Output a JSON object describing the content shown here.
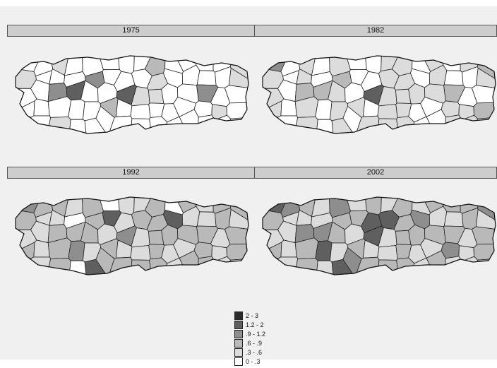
{
  "panels": [
    {
      "label": "1975",
      "regions": [
        0,
        0,
        1,
        0,
        0,
        0,
        0,
        0,
        2,
        0,
        0,
        0,
        0,
        1,
        1,
        0,
        0,
        0,
        3,
        0,
        0,
        0,
        1,
        0,
        0,
        0,
        0,
        1,
        0,
        0,
        3,
        4,
        0,
        0,
        4,
        1,
        1,
        0,
        0,
        3,
        0,
        0,
        0,
        0,
        0,
        0,
        0,
        2,
        0,
        0,
        0,
        0,
        0,
        0,
        1,
        0,
        0,
        0,
        1,
        0,
        0,
        0,
        0,
        0,
        0,
        0,
        0,
        0,
        0,
        0
      ]
    },
    {
      "label": "1982",
      "regions": [
        3,
        0,
        1,
        0,
        1,
        0,
        0,
        1,
        1,
        0,
        1,
        0,
        1,
        2,
        1,
        0,
        1,
        0,
        2,
        0,
        0,
        1,
        1,
        0,
        1,
        0,
        0,
        1,
        1,
        0,
        2,
        2,
        1,
        0,
        4,
        1,
        1,
        1,
        1,
        2,
        0,
        0,
        1,
        0,
        1,
        0,
        1,
        1,
        0,
        1,
        1,
        0,
        0,
        1,
        1,
        2,
        0,
        0,
        1,
        0,
        1,
        0,
        1,
        1,
        1,
        0,
        0,
        1,
        1,
        1
      ]
    },
    {
      "label": "1992",
      "regions": [
        3,
        2,
        2,
        1,
        2,
        0,
        1,
        1,
        2,
        0,
        2,
        1,
        2,
        2,
        2,
        1,
        1,
        0,
        2,
        4,
        1,
        2,
        2,
        4,
        1,
        1,
        2,
        1,
        1,
        1,
        2,
        2,
        2,
        1,
        3,
        1,
        2,
        2,
        2,
        2,
        1,
        2,
        2,
        1,
        2,
        3,
        1,
        2,
        1,
        1,
        2,
        1,
        1,
        2,
        1,
        2,
        1,
        1,
        2,
        0,
        4,
        2,
        2,
        2,
        2,
        1,
        2,
        2,
        1,
        1
      ]
    },
    {
      "label": "2002",
      "regions": [
        4,
        3,
        2,
        1,
        3,
        1,
        2,
        1,
        2,
        1,
        2,
        2,
        2,
        3,
        2,
        1,
        1,
        1,
        2,
        2,
        4,
        4,
        2,
        3,
        1,
        1,
        2,
        1,
        1,
        1,
        3,
        3,
        2,
        1,
        4,
        1,
        2,
        2,
        2,
        2,
        1,
        2,
        2,
        1,
        2,
        4,
        1,
        2,
        1,
        1,
        2,
        1,
        1,
        3,
        1,
        2,
        1,
        1,
        2,
        1,
        4,
        3,
        2,
        2,
        2,
        1,
        2,
        1,
        1,
        2
      ]
    }
  ],
  "legend": [
    {
      "label": "2 - 3",
      "color": "#2b2b2b"
    },
    {
      "label": "1.2 - 2",
      "color": "#5f5f5f"
    },
    {
      "label": ".9 - 1.2",
      "color": "#8e8e8e"
    },
    {
      "label": ".6 - .9",
      "color": "#b9b9b9"
    },
    {
      "label": ".3 - .6",
      "color": "#dcdcdc"
    },
    {
      "label": "0 - .3",
      "color": "#ffffff"
    }
  ]
}
